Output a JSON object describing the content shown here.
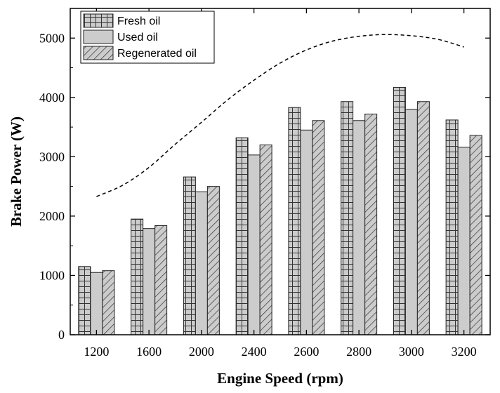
{
  "chart_data": {
    "type": "bar",
    "title": "",
    "xlabel": "Engine Speed (rpm)",
    "ylabel": "Brake Power (W)",
    "categories": [
      "1200",
      "1600",
      "2000",
      "2400",
      "2600",
      "2800",
      "3000",
      "3200"
    ],
    "ylim": [
      0,
      5500
    ],
    "yticks": [
      0,
      1000,
      2000,
      3000,
      4000,
      5000
    ],
    "ytick_labels": [
      "0",
      "1000",
      "2000",
      "3000",
      "4000",
      "5000"
    ],
    "grid": false,
    "legend_position": "top-left",
    "series": [
      {
        "name": "Fresh oil",
        "pattern": "grid",
        "values": [
          1150,
          1950,
          2660,
          3320,
          3830,
          3930,
          4170,
          3620
        ]
      },
      {
        "name": "Used oil",
        "pattern": "solid",
        "values": [
          1050,
          1790,
          2410,
          3030,
          3450,
          3610,
          3800,
          3160
        ]
      },
      {
        "name": "Regenerated oil",
        "pattern": "hatch",
        "values": [
          1080,
          1840,
          2500,
          3200,
          3610,
          3720,
          3930,
          3360
        ]
      }
    ],
    "trend_line": {
      "style": "dashed",
      "x": [
        1.0,
        1.5,
        2.0,
        2.5,
        3.0,
        3.5,
        4.0,
        4.5,
        5.0,
        5.5,
        6.0,
        6.5,
        7.0,
        7.5,
        8.0
      ],
      "y": [
        2330,
        2520,
        2820,
        3210,
        3580,
        3960,
        4290,
        4580,
        4800,
        4950,
        5030,
        5060,
        5040,
        4980,
        4850
      ]
    },
    "colors": {
      "bar_fill": "#cccccc",
      "bar_stroke": "#222222",
      "trend": "#000000"
    }
  }
}
